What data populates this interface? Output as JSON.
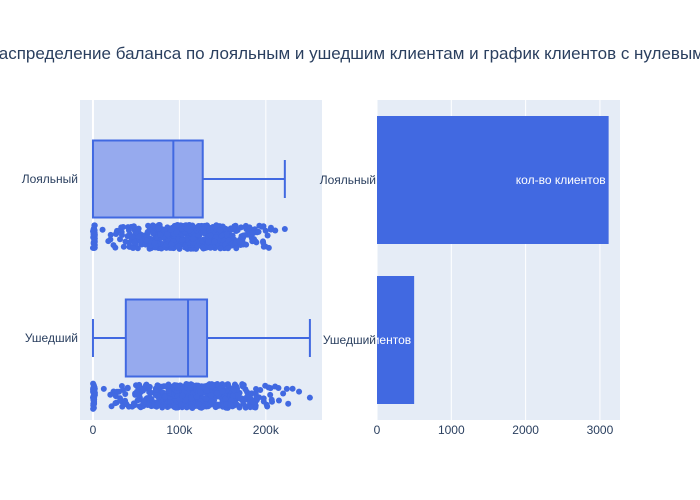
{
  "chart_data": [
    {
      "type": "box",
      "title": "Распределение баланса по лояльным и ушедшим клиентам и график клиентов с нулевым балансом",
      "orientation": "horizontal",
      "categories": [
        "Лояльный",
        "Ушедший"
      ],
      "xlim": [
        -15000,
        265000
      ],
      "xticks": [
        0,
        100000,
        200000
      ],
      "xtick_labels": [
        "0",
        "100k",
        "200k"
      ],
      "boxes": [
        {
          "name": "Лояльный",
          "min": 0,
          "q1": 0,
          "median": 93000,
          "q3": 127000,
          "max": 222000
        },
        {
          "name": "Ушедший",
          "min": 0,
          "q1": 38000,
          "median": 110000,
          "q3": 132000,
          "max": 251000
        }
      ],
      "points_range": [
        {
          "name": "Лояльный",
          "from": 0,
          "to": 222000
        },
        {
          "name": "Ушедший",
          "from": 0,
          "to": 251000
        }
      ],
      "color": "#4169e1",
      "fill": "#96aaee",
      "grid": true
    },
    {
      "type": "bar",
      "orientation": "horizontal",
      "categories": [
        "Лояльный",
        "Ушедший"
      ],
      "values": [
        3117,
        500
      ],
      "xlim": [
        0,
        3270
      ],
      "xticks": [
        0,
        1000,
        2000,
        3000
      ],
      "xtick_labels": [
        "0",
        "1000",
        "2000",
        "3000"
      ],
      "bar_text": "кол-во клиентов",
      "color": "#4169e1",
      "grid": true
    }
  ]
}
